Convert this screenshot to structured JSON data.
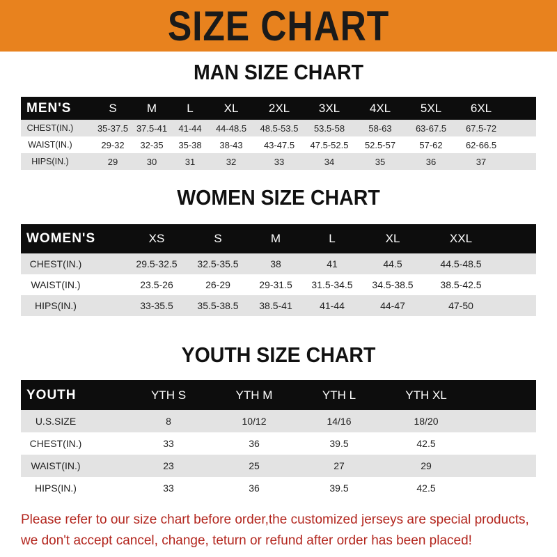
{
  "banner_title": "SIZE CHART",
  "men": {
    "title": "MAN SIZE CHART",
    "header": [
      "MEN'S",
      "S",
      "M",
      "L",
      "XL",
      "2XL",
      "3XL",
      "4XL",
      "5XL",
      "6XL"
    ],
    "rows": [
      [
        "CHEST(IN.)",
        "35-37.5",
        "37.5-41",
        "41-44",
        "44-48.5",
        "48.5-53.5",
        "53.5-58",
        "58-63",
        "63-67.5",
        "67.5-72"
      ],
      [
        "WAIST(IN.)",
        "29-32",
        "32-35",
        "35-38",
        "38-43",
        "43-47.5",
        "47.5-52.5",
        "52.5-57",
        "57-62",
        "62-66.5"
      ],
      [
        "HIPS(IN.)",
        "29",
        "30",
        "31",
        "32",
        "33",
        "34",
        "35",
        "36",
        "37"
      ]
    ]
  },
  "women": {
    "title": "WOMEN SIZE CHART",
    "header": [
      "WOMEN'S",
      "XS",
      "S",
      "M",
      "L",
      "XL",
      "XXL"
    ],
    "rows": [
      [
        "CHEST(IN.)",
        "29.5-32.5",
        "32.5-35.5",
        "38",
        "41",
        "44.5",
        "44.5-48.5"
      ],
      [
        "WAIST(IN.)",
        "23.5-26",
        "26-29",
        "29-31.5",
        "31.5-34.5",
        "34.5-38.5",
        "38.5-42.5"
      ],
      [
        "HIPS(IN.)",
        "33-35.5",
        "35.5-38.5",
        "38.5-41",
        "41-44",
        "44-47",
        "47-50"
      ]
    ]
  },
  "youth": {
    "title": "YOUTH SIZE CHART",
    "header": [
      "YOUTH",
      "YTH S",
      "YTH M",
      "YTH L",
      "YTH XL"
    ],
    "rows": [
      [
        "U.S.SIZE",
        "8",
        "10/12",
        "14/16",
        "18/20"
      ],
      [
        "CHEST(IN.)",
        "33",
        "36",
        "39.5",
        "42.5"
      ],
      [
        "WAIST(IN.)",
        "23",
        "25",
        "27",
        "29"
      ],
      [
        "HIPS(IN.)",
        "33",
        "36",
        "39.5",
        "42.5"
      ]
    ]
  },
  "notice": [
    "Please refer to our size chart before order,the customized jerseys are special products,",
    "we don't accept cancel, change, teturn or refund after order has been placed!"
  ],
  "colors": {
    "banner": "#E8821E",
    "header_row": "#0d0d0d",
    "stripe": "#e3e3e3",
    "notice": "#b3261e"
  }
}
